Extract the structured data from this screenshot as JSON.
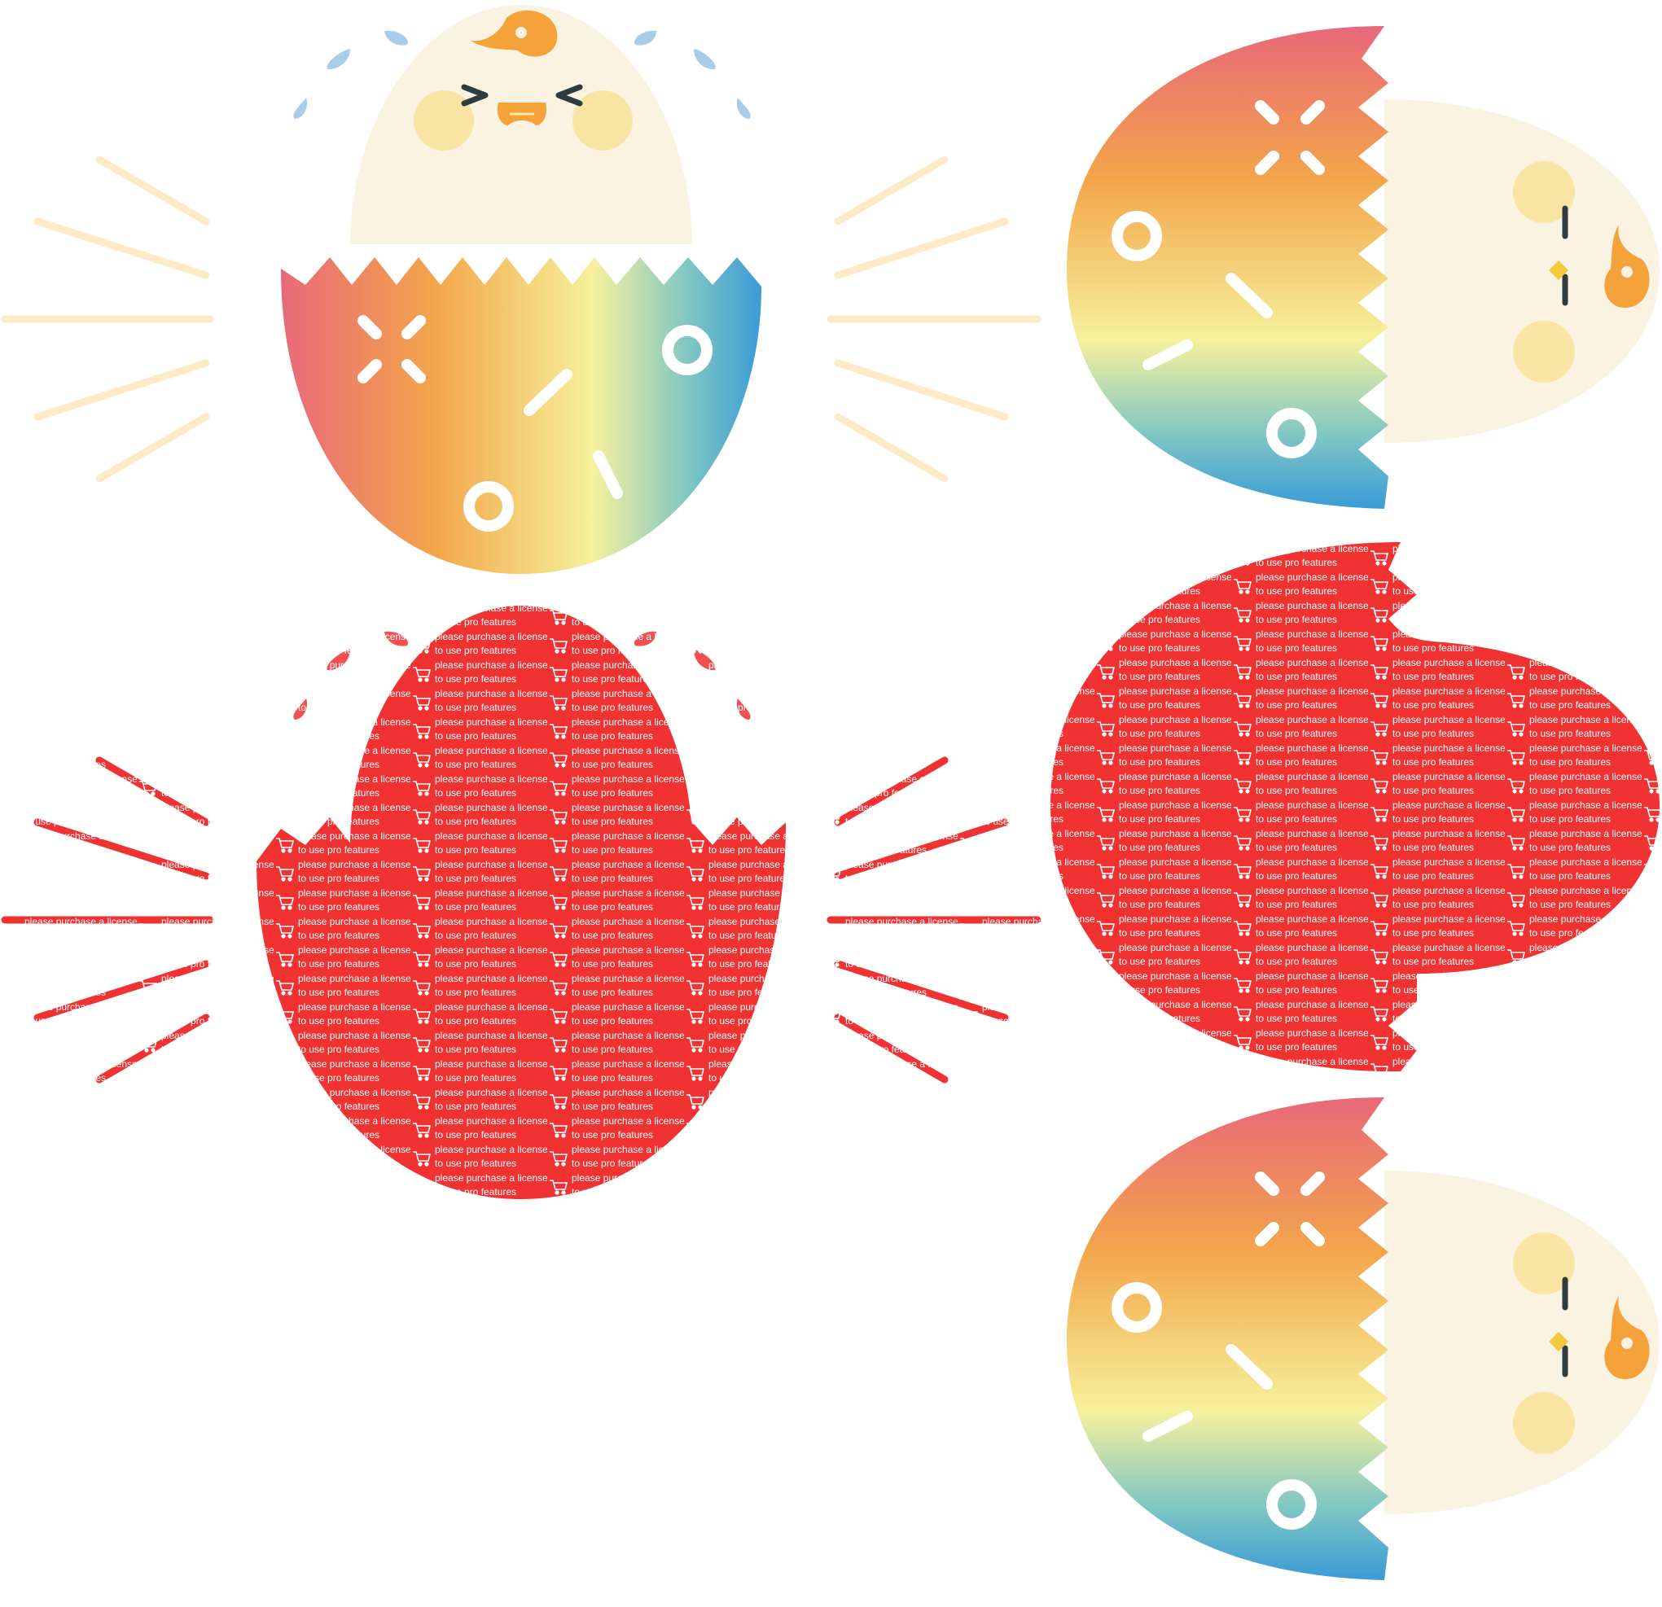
{
  "palette": {
    "background": "#ffffff",
    "egg_cream": "#fbf3e1",
    "cheek_yellow": "#f8e5a4",
    "beak_orange": "#f5a23a",
    "tear_blue": "#a8cde9",
    "ray_cream": "#fcebc6",
    "eye_dark": "#2e3b3f",
    "watermark_red": "#f03232",
    "shell_gradient": [
      "#e96879",
      "#f3a64a",
      "#f6f19c",
      "#7ec6c4",
      "#3a9bd6"
    ]
  },
  "watermark": {
    "line1": "please purchase a license",
    "line2": "to use pro features",
    "icon": "cart-icon"
  },
  "illustrations": [
    {
      "id": "chick-crying-upright",
      "icons": [
        "egg-icon",
        "chick-icon",
        "tear-icon",
        "ray-icon"
      ]
    },
    {
      "id": "chick-sideways-top",
      "icons": [
        "egg-icon",
        "chick-icon"
      ]
    },
    {
      "id": "watermark-blocked-upright",
      "icons": [
        "cart-icon"
      ]
    },
    {
      "id": "watermark-blocked-sideways",
      "icons": [
        "cart-icon"
      ]
    },
    {
      "id": "chick-sideways-bottom",
      "icons": [
        "egg-icon",
        "chick-icon"
      ]
    }
  ]
}
